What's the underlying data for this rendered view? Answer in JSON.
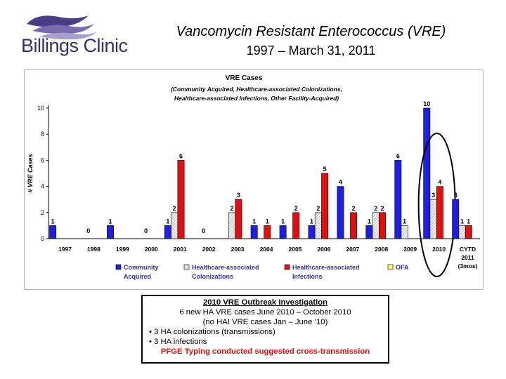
{
  "logo": {
    "text": "Billings Clinic"
  },
  "header": {
    "title": "Vancomycin Resistant Enterococcus (VRE)",
    "subtitle": "1997 – March 31, 2011"
  },
  "chart_data": {
    "type": "bar",
    "title": "VRE Cases",
    "subtitle_lines": [
      "(Community Acquired, Healthcare-associated Colonizations,",
      "Healthcare-associated Infections, Other Facility-Acquired)"
    ],
    "ylabel": "# VRE Cases",
    "xlabel": "",
    "ylim": [
      0,
      10
    ],
    "yticks": [
      0,
      2,
      4,
      6,
      8,
      10
    ],
    "categories": [
      "1997",
      "1998",
      "1999",
      "2000",
      "2001",
      "2002",
      "2003",
      "2004",
      "2005",
      "2006",
      "2007",
      "2008",
      "2009",
      "2010",
      "CYTD 2011 (3mos)"
    ],
    "category_lines": [
      [
        "1997"
      ],
      [
        "1998"
      ],
      [
        "1999"
      ],
      [
        "2000"
      ],
      [
        "2001"
      ],
      [
        "2002"
      ],
      [
        "2003"
      ],
      [
        "2004"
      ],
      [
        "2005"
      ],
      [
        "2006"
      ],
      [
        "2007"
      ],
      [
        "2008"
      ],
      [
        "2009"
      ],
      [
        "2010"
      ],
      [
        "CYTD",
        "2011",
        "(3mos)"
      ]
    ],
    "series": [
      {
        "name": "Community Acquired",
        "legend_lines": [
          "Community",
          "Acquired"
        ],
        "color": "#1f1fe0",
        "pattern": "solid",
        "values": [
          1,
          0,
          1,
          0,
          1,
          0,
          0,
          1,
          1,
          1,
          4,
          1,
          6,
          10,
          3
        ]
      },
      {
        "name": "Healthcare-associated Colonizations",
        "legend_lines": [
          "Healthcare-associated",
          "Colonizations"
        ],
        "color": "#d8d8d8",
        "pattern": "hatch",
        "values": [
          0,
          0,
          0,
          0,
          2,
          0,
          2,
          0,
          0,
          2,
          0,
          2,
          1,
          3,
          1
        ]
      },
      {
        "name": "Healthcare-associated Infections",
        "legend_lines": [
          "Healthcare-associated",
          "Infections"
        ],
        "color": "#e01010",
        "pattern": "solid",
        "values": [
          0,
          0,
          0,
          0,
          6,
          0,
          3,
          1,
          2,
          5,
          2,
          2,
          0,
          4,
          1
        ]
      },
      {
        "name": "OFA",
        "legend_lines": [
          "OFA"
        ],
        "color": "#ffff66",
        "pattern": "solid",
        "values": [
          0,
          0,
          0,
          0,
          0,
          0,
          0,
          0,
          0,
          0,
          0,
          0,
          0,
          0,
          0
        ]
      }
    ],
    "highlight": "2010"
  },
  "note_box": {
    "heading": "2010 VRE Outbreak Investigation",
    "line1": "6 new HA VRE cases June 2010 – October 2010",
    "line2": "(no HAI VRE cases Jan – June ’10)",
    "bullet1": "• 3 HA colonizations (transmissions)",
    "bullet2": "• 3 HA infections",
    "footer": "PFGE Typing conducted suggested cross-transmission"
  }
}
